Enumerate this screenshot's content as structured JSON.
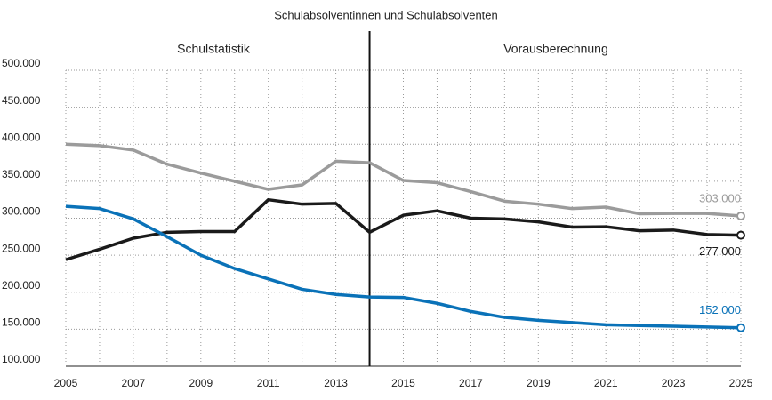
{
  "chart_data": {
    "type": "line",
    "title": "Schulabsolventinnen und Schulabsolventen",
    "annotations": [
      {
        "text": "Schulstatistik"
      },
      {
        "text": "Vorausberechnung"
      }
    ],
    "divider_x": 2014,
    "x": [
      2005,
      2006,
      2007,
      2008,
      2009,
      2010,
      2011,
      2012,
      2013,
      2014,
      2015,
      2016,
      2017,
      2018,
      2019,
      2020,
      2021,
      2022,
      2023,
      2024,
      2025
    ],
    "series": [
      {
        "color": "#9b9b9b",
        "values": [
          400000,
          398000,
          392000,
          373000,
          361000,
          350000,
          339000,
          345000,
          377000,
          375000,
          351000,
          348000,
          336000,
          323000,
          319000,
          313000,
          315000,
          306000,
          306500,
          306500,
          303000
        ],
        "value_labels": [
          null,
          null,
          null,
          null,
          null,
          null,
          null,
          null,
          null,
          null,
          null,
          null,
          null,
          null,
          null,
          null,
          null,
          null,
          null,
          null,
          "303.000"
        ]
      },
      {
        "color": "#1a1a1a",
        "values": [
          244000,
          258000,
          273000,
          281000,
          282000,
          282000,
          325000,
          319000,
          320000,
          281000,
          304000,
          310000,
          300000,
          299000,
          295000,
          288000,
          288500,
          283000,
          284000,
          278000,
          277000
        ],
        "value_labels": [
          null,
          null,
          null,
          null,
          null,
          null,
          null,
          null,
          null,
          null,
          null,
          null,
          null,
          null,
          null,
          null,
          null,
          null,
          null,
          null,
          "277.000"
        ]
      },
      {
        "color": "#0a72b8",
        "values": [
          316000,
          313000,
          299000,
          275000,
          250000,
          232000,
          218000,
          204000,
          197000,
          193500,
          193000,
          185000,
          174000,
          166000,
          162000,
          159000,
          156000,
          155000,
          154000,
          153000,
          152000
        ],
        "value_labels": [
          null,
          null,
          null,
          null,
          null,
          null,
          null,
          null,
          null,
          null,
          null,
          null,
          null,
          null,
          null,
          null,
          null,
          null,
          null,
          null,
          "152.000"
        ]
      }
    ],
    "xlim": [
      2005,
      2025
    ],
    "xticks": [
      2005,
      2007,
      2009,
      2011,
      2013,
      2015,
      2017,
      2019,
      2021,
      2023,
      2025
    ],
    "ylim": [
      100000,
      500000
    ],
    "yticks": [
      {
        "value": 100000,
        "label": "100.000"
      },
      {
        "value": 150000,
        "label": "150.000"
      },
      {
        "value": 200000,
        "label": "200.000"
      },
      {
        "value": 250000,
        "label": "250.000"
      },
      {
        "value": 300000,
        "label": "300.000"
      },
      {
        "value": 350000,
        "label": "350.000"
      },
      {
        "value": 400000,
        "label": "400.000"
      },
      {
        "value": 450000,
        "label": "450.000"
      },
      {
        "value": 500000,
        "label": "500.000"
      }
    ],
    "grid": true
  }
}
